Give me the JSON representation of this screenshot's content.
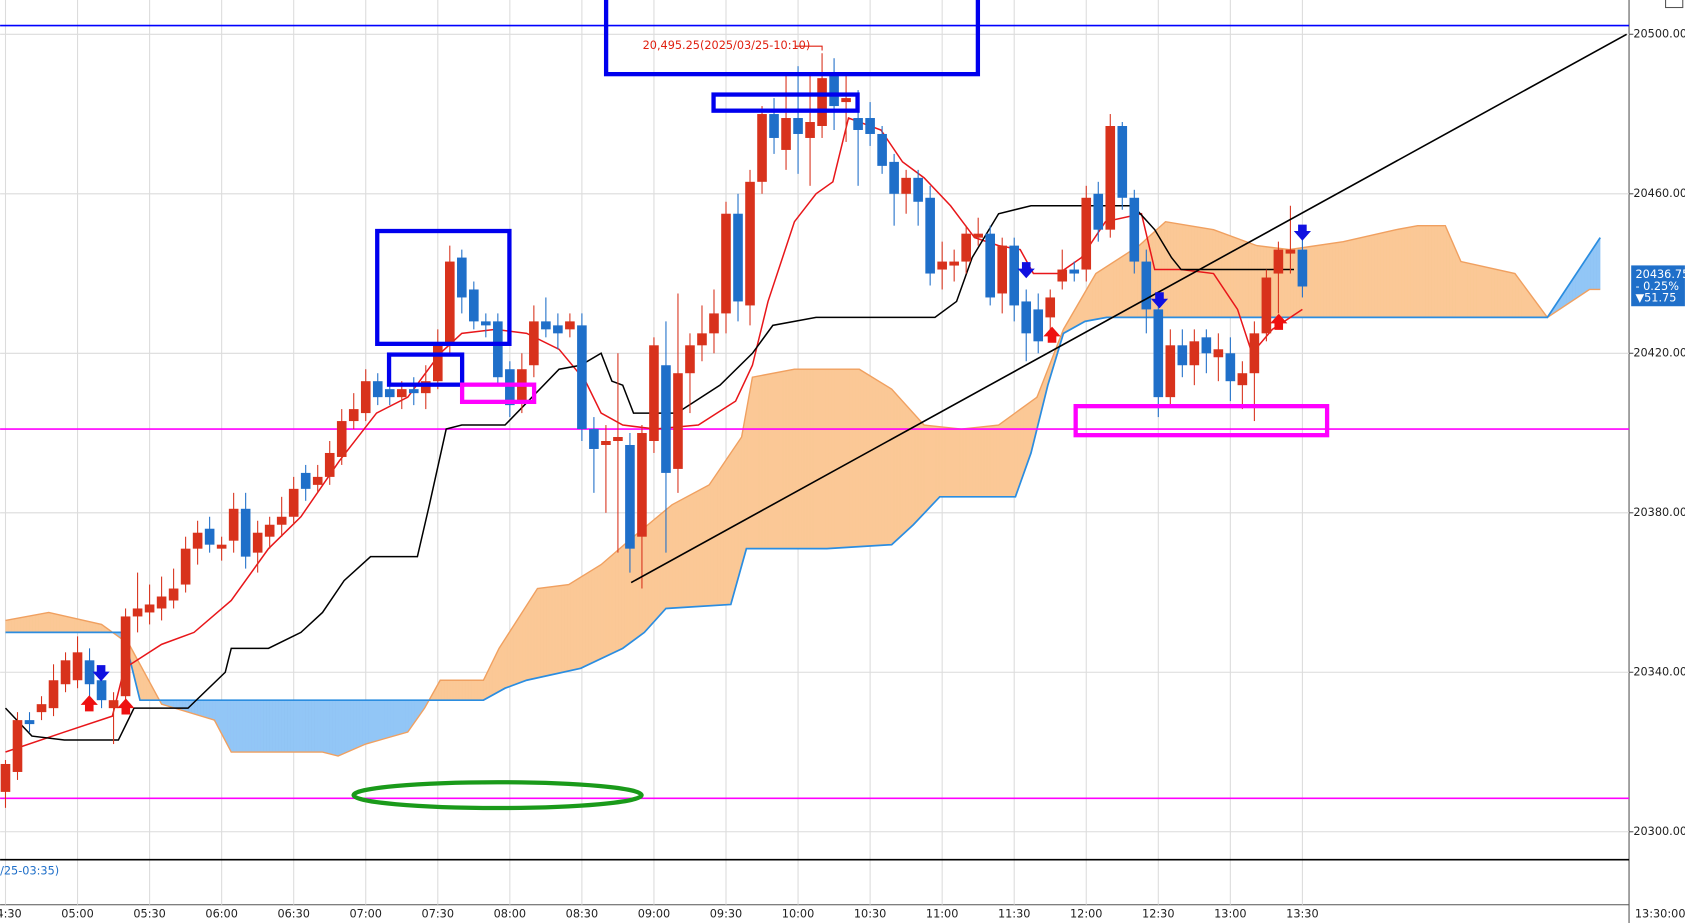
{
  "chart_data": {
    "type": "candlestick",
    "annotation": "20,495.25(2025/03/25-10:10)",
    "last_price": "20436.75",
    "change_pct": "- 0.25%",
    "change": "▼51.75",
    "range_note": "/25-03:35)",
    "end_time": "13:30:00",
    "up_color": "#d8321c",
    "down_color": "#1f6fc9",
    "categories": [
      "04:30",
      null,
      null,
      null,
      null,
      null,
      "05:00",
      null,
      null,
      null,
      null,
      null,
      "05:30",
      null,
      null,
      null,
      null,
      null,
      "06:00",
      null,
      null,
      null,
      null,
      null,
      "06:30",
      null,
      null,
      null,
      null,
      null,
      "07:00",
      null,
      null,
      null,
      null,
      null,
      "07:30",
      null,
      null,
      null,
      null,
      null,
      "08:00",
      null,
      null,
      null,
      null,
      null,
      "08:30",
      null,
      null,
      null,
      null,
      null,
      "09:00",
      null,
      null,
      null,
      null,
      null,
      "09:30",
      null,
      null,
      null,
      null,
      null,
      "10:00",
      null,
      null,
      null,
      null,
      null,
      "10:30",
      null,
      null,
      null,
      null,
      null,
      "11:00",
      null,
      null,
      null,
      null,
      null,
      "11:30",
      null,
      null,
      null,
      null,
      null,
      "12:00",
      null,
      null,
      null,
      null,
      null,
      "12:30",
      null,
      null,
      null,
      null,
      null,
      "13:00",
      null,
      null,
      null,
      null,
      null,
      "13:30"
    ],
    "open": [
      20310,
      20315,
      20328,
      20330,
      20331,
      20337,
      20338,
      20343,
      20338,
      20331,
      20334,
      20354,
      20355,
      20356,
      20358,
      20362,
      20371,
      20376,
      20371,
      20373,
      20381,
      20370,
      20374,
      20377,
      20379,
      20390,
      20387,
      20389,
      20394,
      20403,
      20405,
      20413,
      20411,
      20409,
      20411,
      20410,
      20413,
      20422,
      20444,
      20436,
      20428,
      20428,
      20416,
      20408,
      20417,
      20428,
      20427,
      20426,
      20427,
      20401,
      20397,
      20398,
      20397,
      20374,
      20398,
      20417,
      20391,
      20415,
      20422,
      20425,
      20430,
      20455,
      20432,
      20463,
      20480,
      20471,
      20479,
      20474,
      20477,
      20490,
      20483,
      20479,
      20479,
      20475,
      20468,
      20460,
      20464,
      20459,
      20441,
      20442,
      20443,
      20449,
      20450,
      20435,
      20447,
      20433,
      20431,
      20429,
      20438,
      20441,
      20441,
      20460,
      20451,
      20477,
      20459,
      20443,
      20431,
      20409,
      20422,
      20417,
      20424,
      20419,
      20420,
      20412,
      20415,
      20425,
      20440,
      20445,
      20446
    ],
    "high": [
      20318,
      20330,
      20330,
      20334,
      20342,
      20345,
      20349,
      20346,
      20340,
      20335,
      20356,
      20365,
      20362,
      20364,
      20366,
      20374,
      20378,
      20379,
      20374,
      20385,
      20385,
      20378,
      20379,
      20384,
      20389,
      20392,
      20392,
      20398,
      20406,
      20410,
      20416,
      20415,
      20413,
      20413,
      20414,
      20417,
      20426,
      20447,
      20446,
      20438,
      20430,
      20430,
      20418,
      20420,
      20432,
      20434,
      20430,
      20430,
      20430,
      20404,
      20402,
      20420,
      20400,
      20402,
      20424,
      20428,
      20435,
      20425,
      20432,
      20436,
      20458,
      20460,
      20466,
      20482,
      20484,
      20490,
      20492,
      20490,
      20495.25,
      20494,
      20490,
      20486,
      20483,
      20477,
      20470,
      20466,
      20466,
      20462,
      20448,
      20446,
      20452,
      20454,
      20452,
      20449,
      20449,
      20436,
      20435,
      20436,
      20446,
      20443,
      20462,
      20463,
      20480,
      20478,
      20461,
      20446,
      20433,
      20426,
      20426,
      20426,
      20426,
      20425,
      20424,
      20418,
      20428,
      20441,
      20448,
      20457,
      20450
    ],
    "low": [
      20306,
      20313,
      20325,
      20328,
      20329,
      20335,
      20336,
      20334,
      20331,
      20322,
      20330,
      20350,
      20352,
      20353,
      20356,
      20360,
      20367,
      20370,
      20368,
      20370,
      20366,
      20365,
      20371,
      20374,
      20377,
      20383,
      20385,
      20387,
      20392,
      20401,
      20403,
      20407,
      20407,
      20406,
      20407,
      20406,
      20411,
      20420,
      20430,
      20426,
      20424,
      20412,
      20404,
      20405,
      20414,
      20424,
      20421,
      20424,
      20398,
      20385,
      20380,
      20370,
      20365,
      20361,
      20395,
      20370,
      20385,
      20405,
      20418,
      20420,
      20425,
      20428,
      20427,
      20460,
      20470,
      20466,
      20465,
      20462,
      20474,
      20476,
      20473,
      20462,
      20472,
      20465,
      20452,
      20455,
      20452,
      20437,
      20436,
      20438,
      20440,
      20447,
      20432,
      20430,
      20428,
      20418,
      20420,
      20425,
      20436,
      20438,
      20438,
      20448,
      20449,
      20456,
      20440,
      20425,
      20404,
      20407,
      20414,
      20412,
      20415,
      20413,
      20408,
      20406,
      20403,
      20423,
      20430,
      20440,
      20434
    ],
    "close": [
      20317,
      20328,
      20327,
      20332,
      20338,
      20343,
      20345,
      20337,
      20333,
      20333,
      20354,
      20356,
      20357,
      20359,
      20361,
      20371,
      20375,
      20372,
      20372,
      20381,
      20369,
      20375,
      20377,
      20379,
      20386,
      20386,
      20389,
      20395,
      20403,
      20406,
      20413,
      20409,
      20409,
      20411,
      20410,
      20413,
      20422,
      20443,
      20434,
      20428,
      20427,
      20414,
      20407,
      20416,
      20428,
      20426,
      20425,
      20428,
      20401,
      20396,
      20398,
      20399,
      20371,
      20400,
      20422,
      20390,
      20415,
      20422,
      20425,
      20430,
      20455,
      20433,
      20463,
      20480,
      20474,
      20479,
      20475,
      20478,
      20489,
      20482,
      20484,
      20476,
      20475,
      20467,
      20460,
      20464,
      20458,
      20440,
      20443,
      20443,
      20450,
      20450,
      20434,
      20447,
      20432,
      20425,
      20423,
      20434,
      20441,
      20440,
      20459,
      20451,
      20477,
      20459,
      20443,
      20431,
      20409,
      20422,
      20417,
      20423,
      20420,
      20421,
      20413,
      20415,
      20425,
      20439,
      20446,
      20446,
      20436.75
    ],
    "lines": [
      {
        "color": "#e8161a",
        "x": [
          0,
          4.9,
          8.9,
          9.9,
          13,
          15.7,
          18.8,
          21.9,
          24.6,
          27.8,
          30.9,
          33.5,
          36.2,
          38,
          40.8,
          43.4,
          46.1,
          48.3,
          49.6,
          51.4,
          54.1,
          57.7,
          60.8,
          62.2,
          63.5,
          65.7,
          67.5,
          68.9,
          70.2,
          72.9,
          74.7,
          76.5,
          78.7,
          80.7,
          82.7,
          84.5,
          85.6,
          87.7,
          89.6,
          91.6,
          94.6,
          95.7,
          97.9,
          100.6,
          102.6,
          103.8,
          105.5,
          108
        ],
        "values": [
          20320,
          20325,
          20329,
          20341,
          20347,
          20350,
          20358,
          20371,
          20379,
          20393,
          20405,
          20409,
          20420,
          20425,
          20426,
          20425,
          20421,
          20413,
          20405,
          20402,
          20401,
          20402,
          20408,
          20417,
          20433,
          20453,
          20460,
          20463,
          20479,
          20476,
          20468,
          20464,
          20457,
          20449,
          20447,
          20446,
          20440,
          20440,
          20444,
          20453,
          20455,
          20441,
          20441,
          20440,
          20431,
          20420,
          20426,
          20431
        ]
      },
      {
        "color": "#000000",
        "x": [
          0,
          2.2,
          4.9,
          9.4,
          10.7,
          15.2,
          18.3,
          18.8,
          21.9,
          24.6,
          26.4,
          28.2,
          30.4,
          34.3,
          35.3,
          36.7,
          38,
          41.6,
          46.1,
          47.9,
          49.6,
          50.5,
          51.4,
          52.3,
          55.9,
          59.5,
          62.2,
          63.9,
          67.5,
          77.4,
          79.2,
          80.5,
          82.7,
          85.4,
          93.9,
          95.7,
          97.1,
          97.9,
          102.4,
          107.3
        ],
        "values": [
          20331,
          20324,
          20323,
          20323,
          20331,
          20331,
          20340,
          20346,
          20346,
          20350,
          20355,
          20363,
          20369,
          20369,
          20382,
          20401,
          20402,
          20402,
          20416,
          20417,
          20420,
          20413,
          20412,
          20405,
          20405,
          20412,
          20420,
          20427,
          20429,
          20429,
          20433,
          20444,
          20455,
          20457,
          20457,
          20451,
          20444,
          20441,
          20441,
          20441
        ]
      }
    ],
    "cloud": {
      "span_a": {
        "color": "#f0a060",
        "x": [
          0,
          3.6,
          8,
          10.3,
          13,
          17.4,
          18.8,
          26.4,
          27.7,
          30,
          33.5,
          34.9,
          36.2,
          39.8,
          41.1,
          44.3,
          46.9,
          49.6,
          52.3,
          55.5,
          58.6,
          61.3,
          62.2,
          65.7,
          71.1,
          73.8,
          76.5,
          79.6,
          82.7,
          85.9,
          88.1,
          90.8,
          94.4,
          96.6,
          100.6,
          104.2,
          106.9,
          111.4,
          115.8,
          117.6,
          119.9,
          121.2,
          125.7,
          128.4,
          131.9,
          132.8
        ],
        "values": [
          20353,
          20355,
          20352,
          20347,
          20332,
          20328,
          20320,
          20320,
          20319,
          20322,
          20325,
          20331,
          20338,
          20338,
          20346,
          20361,
          20362,
          20367,
          20374,
          20382,
          20387,
          20399,
          20414,
          20416,
          20416,
          20411,
          20402,
          20401,
          20402,
          20409,
          20426,
          20440,
          20447,
          20453,
          20451,
          20447,
          20446,
          20448,
          20451,
          20452,
          20452,
          20443,
          20440,
          20429,
          20436,
          20436
        ]
      },
      "span_b": {
        "color": "#2b8de0",
        "x": [
          0,
          9.8,
          11.2,
          39.8,
          41.6,
          43.4,
          47.9,
          51.4,
          53.2,
          55,
          60.4,
          61.7,
          68.4,
          73.8,
          75.6,
          77.8,
          84.1,
          85.4,
          86.8,
          88.1,
          89.9,
          91.7,
          128.4,
          132.8
        ],
        "values": [
          20350,
          20350,
          20333,
          20333,
          20336,
          20338,
          20341,
          20346,
          20350,
          20356,
          20357,
          20371,
          20371,
          20372,
          20377,
          20384,
          20384,
          20395,
          20412,
          20425,
          20428,
          20429,
          20429,
          20449
        ]
      },
      "up_fill": "#fbc896",
      "down_fill": "#92c6f6"
    },
    "trendline": {
      "color": "#000000",
      "x": [
        52.1,
        135
      ],
      "values": [
        20362.5,
        20500
      ]
    },
    "hlines": [
      {
        "value": 20502.2,
        "color": "#0000ff"
      },
      {
        "value": 20401,
        "color": "#ff00ff"
      },
      {
        "value": 20308.4,
        "color": "#ff00ff"
      },
      {
        "value": 20293,
        "color": "#000000"
      }
    ],
    "xlim": [
      -0.45,
      135.2
    ],
    "ylim": [
      20281.7,
      20508.6
    ],
    "yticks": [
      {
        "value": 20300,
        "label": "20300.00"
      },
      {
        "value": 20340,
        "label": "20340.00"
      },
      {
        "value": 20380,
        "label": "20380.00"
      },
      {
        "value": 20420,
        "label": "20420.00"
      },
      {
        "value": 20460,
        "label": "20460.00"
      },
      {
        "value": 20500,
        "label": "20500.00"
      }
    ],
    "grid": true
  }
}
